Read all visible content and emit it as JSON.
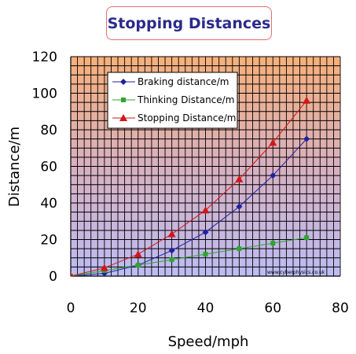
{
  "chart_data": {
    "type": "line",
    "title": "Stopping Distances",
    "xlabel": "Speed/mph",
    "ylabel": "Distance/m",
    "xlim": [
      0,
      80
    ],
    "ylim": [
      0,
      120
    ],
    "x_ticks": [
      "0",
      "20",
      "40",
      "60",
      "80"
    ],
    "y_ticks": [
      "0",
      "20",
      "40",
      "60",
      "80",
      "100",
      "120"
    ],
    "grid": true,
    "legend_position": "top-left",
    "credit": "www.cyberphysics.co.uk",
    "series": [
      {
        "name": "Braking distance/m",
        "color": "#1f1fa0",
        "marker": "diamond",
        "x": [
          0,
          10,
          20,
          30,
          40,
          50,
          60,
          70
        ],
        "y": [
          0,
          1.5,
          6,
          14,
          24,
          38,
          55,
          75
        ]
      },
      {
        "name": "Thinking Distance/m",
        "color": "#2ea52e",
        "marker": "square",
        "x": [
          0,
          10,
          20,
          30,
          40,
          50,
          60,
          70
        ],
        "y": [
          0,
          3,
          6,
          9,
          12,
          15,
          18,
          21
        ]
      },
      {
        "name": "Stopping Distance/m",
        "color": "#d01818",
        "marker": "triangle",
        "x": [
          0,
          10,
          20,
          30,
          40,
          50,
          60,
          70
        ],
        "y": [
          0,
          4.5,
          12,
          23,
          36,
          53,
          73,
          96
        ]
      }
    ]
  }
}
